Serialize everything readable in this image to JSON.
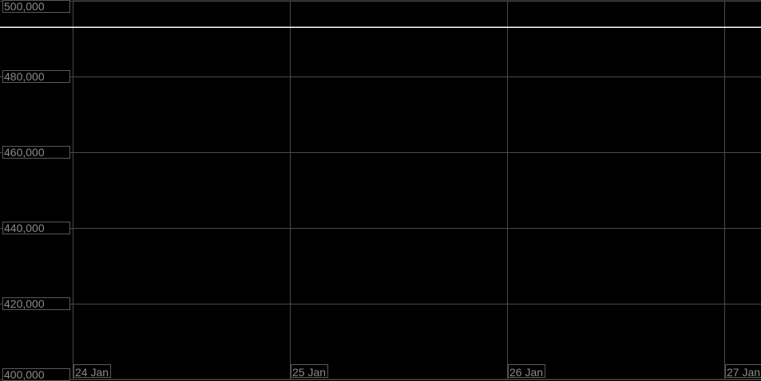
{
  "chart_data": {
    "type": "line",
    "title": "",
    "xlabel": "",
    "ylabel": "",
    "x_ticks": [
      "24 Jan",
      "25 Jan",
      "26 Jan",
      "27 Jan"
    ],
    "y_ticks": [
      "500,000",
      "480,000",
      "460,000",
      "440,000",
      "420,000",
      "400,000"
    ],
    "y_tick_values": [
      500000,
      480000,
      460000,
      440000,
      420000,
      400000
    ],
    "ylim": [
      400000,
      500000
    ],
    "grid": true,
    "series": [
      {
        "x": [
          "24 Jan",
          "25 Jan",
          "26 Jan",
          "27 Jan"
        ],
        "values": [
          493000,
          493000,
          493000,
          493000
        ],
        "color": "#ffffff"
      }
    ],
    "colors": {
      "background": "#000000",
      "grid": "#4a4a4a",
      "label_text": "#8a8a8a",
      "label_border": "#5a5a5a",
      "line": "#ffffff"
    }
  }
}
